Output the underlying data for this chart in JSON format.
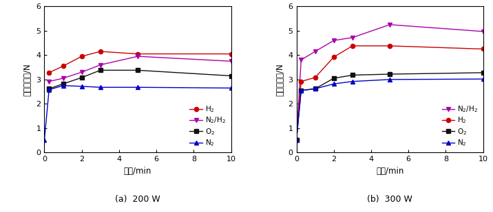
{
  "panel_a": {
    "title": "(a)  200 W",
    "xlabel": "时间/min",
    "ylabel": "表面粘附力/N",
    "xlim": [
      0,
      10
    ],
    "ylim": [
      0,
      6
    ],
    "xticks": [
      0,
      2,
      4,
      6,
      8,
      10
    ],
    "yticks": [
      0,
      1,
      2,
      3,
      4,
      5,
      6
    ],
    "series": {
      "H2": {
        "x": [
          0.25,
          1,
          2,
          3,
          5,
          10
        ],
        "y": [
          3.28,
          3.55,
          3.95,
          4.15,
          4.05,
          4.05
        ],
        "color": "#cc0000",
        "marker": "o",
        "label": "H$_2$"
      },
      "N2H2": {
        "x": [
          0.25,
          1,
          2,
          3,
          5,
          10
        ],
        "y": [
          2.92,
          3.05,
          3.3,
          3.6,
          3.95,
          3.75
        ],
        "color": "#aa00aa",
        "marker": "v",
        "label": "N$_2$/H$_2$"
      },
      "O2": {
        "x": [
          0.25,
          1,
          2,
          3,
          5,
          10
        ],
        "y": [
          2.62,
          2.82,
          3.08,
          3.38,
          3.38,
          3.15
        ],
        "color": "#111111",
        "marker": "s",
        "label": "O$_2$"
      },
      "N2": {
        "x": [
          0,
          0.25,
          1,
          2,
          3,
          5,
          10
        ],
        "y": [
          0.52,
          2.58,
          2.75,
          2.72,
          2.68,
          2.68,
          2.65
        ],
        "color": "#0000cc",
        "marker": "^",
        "label": "N$_2$"
      }
    }
  },
  "panel_b": {
    "title": "(b)  300 W",
    "xlabel": "时间/min",
    "ylabel": "表面粘附力/N",
    "xlim": [
      0,
      10
    ],
    "ylim": [
      0,
      6
    ],
    "xticks": [
      0,
      2,
      4,
      6,
      8,
      10
    ],
    "yticks": [
      0,
      1,
      2,
      3,
      4,
      5,
      6
    ],
    "series": {
      "N2H2": {
        "x": [
          0,
          0.25,
          1,
          2,
          3,
          5,
          10
        ],
        "y": [
          0.52,
          3.8,
          4.15,
          4.6,
          4.72,
          5.25,
          4.97
        ],
        "color": "#aa00aa",
        "marker": "v",
        "label": "N$_2$/H$_2$"
      },
      "H2": {
        "x": [
          0,
          0.25,
          1,
          2,
          3,
          5,
          10
        ],
        "y": [
          0.52,
          2.92,
          3.08,
          3.92,
          4.38,
          4.38,
          4.25
        ],
        "color": "#cc0000",
        "marker": "o",
        "label": "H$_2$"
      },
      "O2": {
        "x": [
          0,
          0.25,
          1,
          2,
          3,
          5,
          10
        ],
        "y": [
          0.52,
          2.55,
          2.62,
          3.05,
          3.18,
          3.22,
          3.28
        ],
        "color": "#111111",
        "marker": "s",
        "label": "O$_2$"
      },
      "N2": {
        "x": [
          0,
          0.25,
          1,
          2,
          3,
          5,
          10
        ],
        "y": [
          0.52,
          2.55,
          2.62,
          2.82,
          2.92,
          3.0,
          3.02
        ],
        "color": "#0000cc",
        "marker": "^",
        "label": "N$_2$"
      }
    }
  }
}
